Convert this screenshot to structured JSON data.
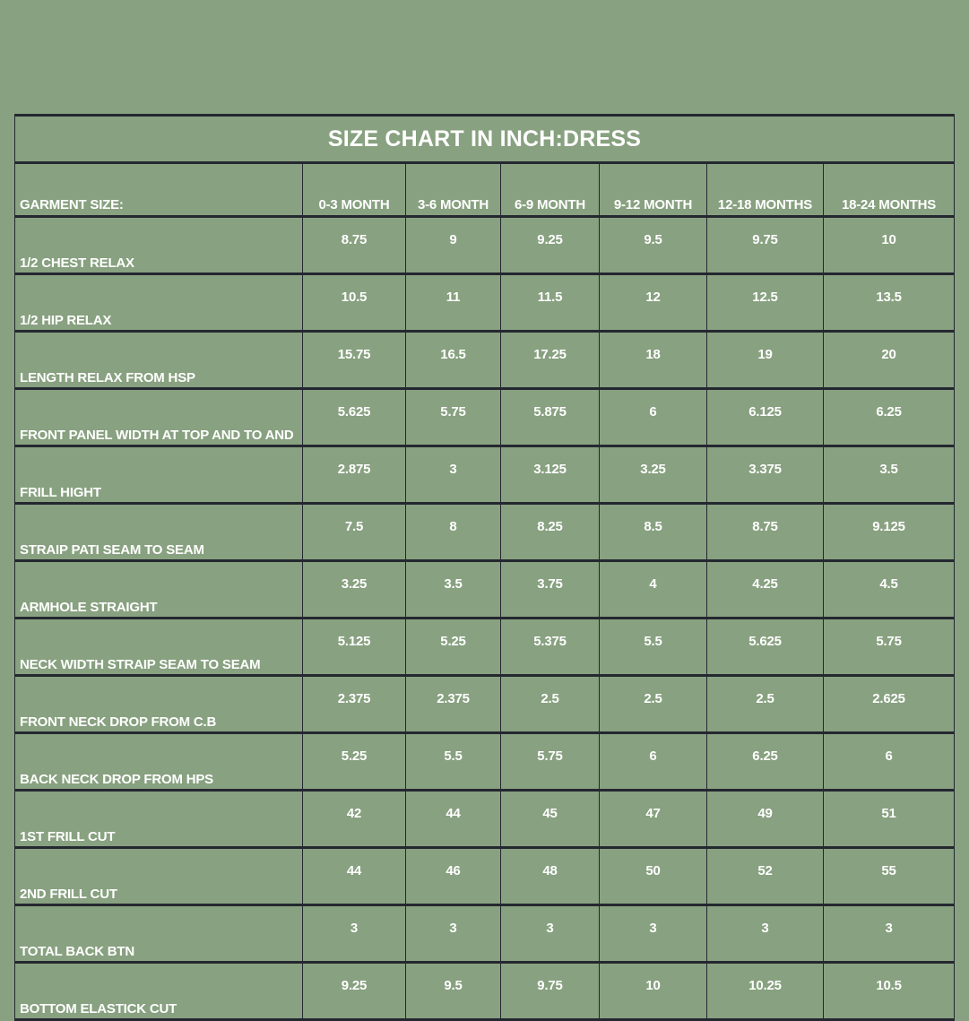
{
  "page": {
    "background_color": "#88a180",
    "grid_color": "#242830",
    "text_color": "#ffffff"
  },
  "chart_data": {
    "type": "table",
    "title": "SIZE CHART IN INCH:DRESS",
    "header_label": "GARMENT SIZE:",
    "columns": [
      "0-3 MONTH",
      "3-6 MONTH",
      "6-9 MONTH",
      "9-12 MONTH",
      "12-18 MONTHS",
      "18-24 MONTHS"
    ],
    "rows": [
      {
        "label": "1/2 CHEST RELAX",
        "values": [
          "8.75",
          "9",
          "9.25",
          "9.5",
          "9.75",
          "10"
        ]
      },
      {
        "label": "1/2 HIP RELAX",
        "values": [
          "10.5",
          "11",
          "11.5",
          "12",
          "12.5",
          "13.5"
        ]
      },
      {
        "label": "LENGTH RELAX FROM HSP",
        "values": [
          "15.75",
          "16.5",
          "17.25",
          "18",
          "19",
          "20"
        ]
      },
      {
        "label": "FRONT PANEL WIDTH AT TOP AND TO AND",
        "values": [
          "5.625",
          "5.75",
          "5.875",
          "6",
          "6.125",
          "6.25"
        ]
      },
      {
        "label": "FRILL HIGHT",
        "values": [
          "2.875",
          "3",
          "3.125",
          "3.25",
          "3.375",
          "3.5"
        ]
      },
      {
        "label": "STRAIP PATI SEAM TO SEAM",
        "values": [
          "7.5",
          "8",
          "8.25",
          "8.5",
          "8.75",
          "9.125"
        ]
      },
      {
        "label": "ARMHOLE STRAIGHT",
        "values": [
          "3.25",
          "3.5",
          "3.75",
          "4",
          "4.25",
          "4.5"
        ]
      },
      {
        "label": "NECK WIDTH STRAIP SEAM TO SEAM",
        "values": [
          "5.125",
          "5.25",
          "5.375",
          "5.5",
          "5.625",
          "5.75"
        ]
      },
      {
        "label": "FRONT NECK DROP FROM C.B",
        "values": [
          "2.375",
          "2.375",
          "2.5",
          "2.5",
          "2.5",
          "2.625"
        ]
      },
      {
        "label": "BACK NECK DROP FROM HPS",
        "values": [
          "5.25",
          "5.5",
          "5.75",
          "6",
          "6.25",
          "6"
        ]
      },
      {
        "label": "1ST FRILL CUT",
        "values": [
          "42",
          "44",
          "45",
          "47",
          "49",
          "51"
        ]
      },
      {
        "label": "2ND FRILL CUT",
        "values": [
          "44",
          "46",
          "48",
          "50",
          "52",
          "55"
        ]
      },
      {
        "label": "TOTAL BACK BTN",
        "values": [
          "3",
          "3",
          "3",
          "3",
          "3",
          "3"
        ]
      },
      {
        "label": "BOTTOM ELASTICK CUT",
        "values": [
          "9.25",
          "9.5",
          "9.75",
          "10",
          "10.25",
          "10.5"
        ]
      }
    ]
  }
}
